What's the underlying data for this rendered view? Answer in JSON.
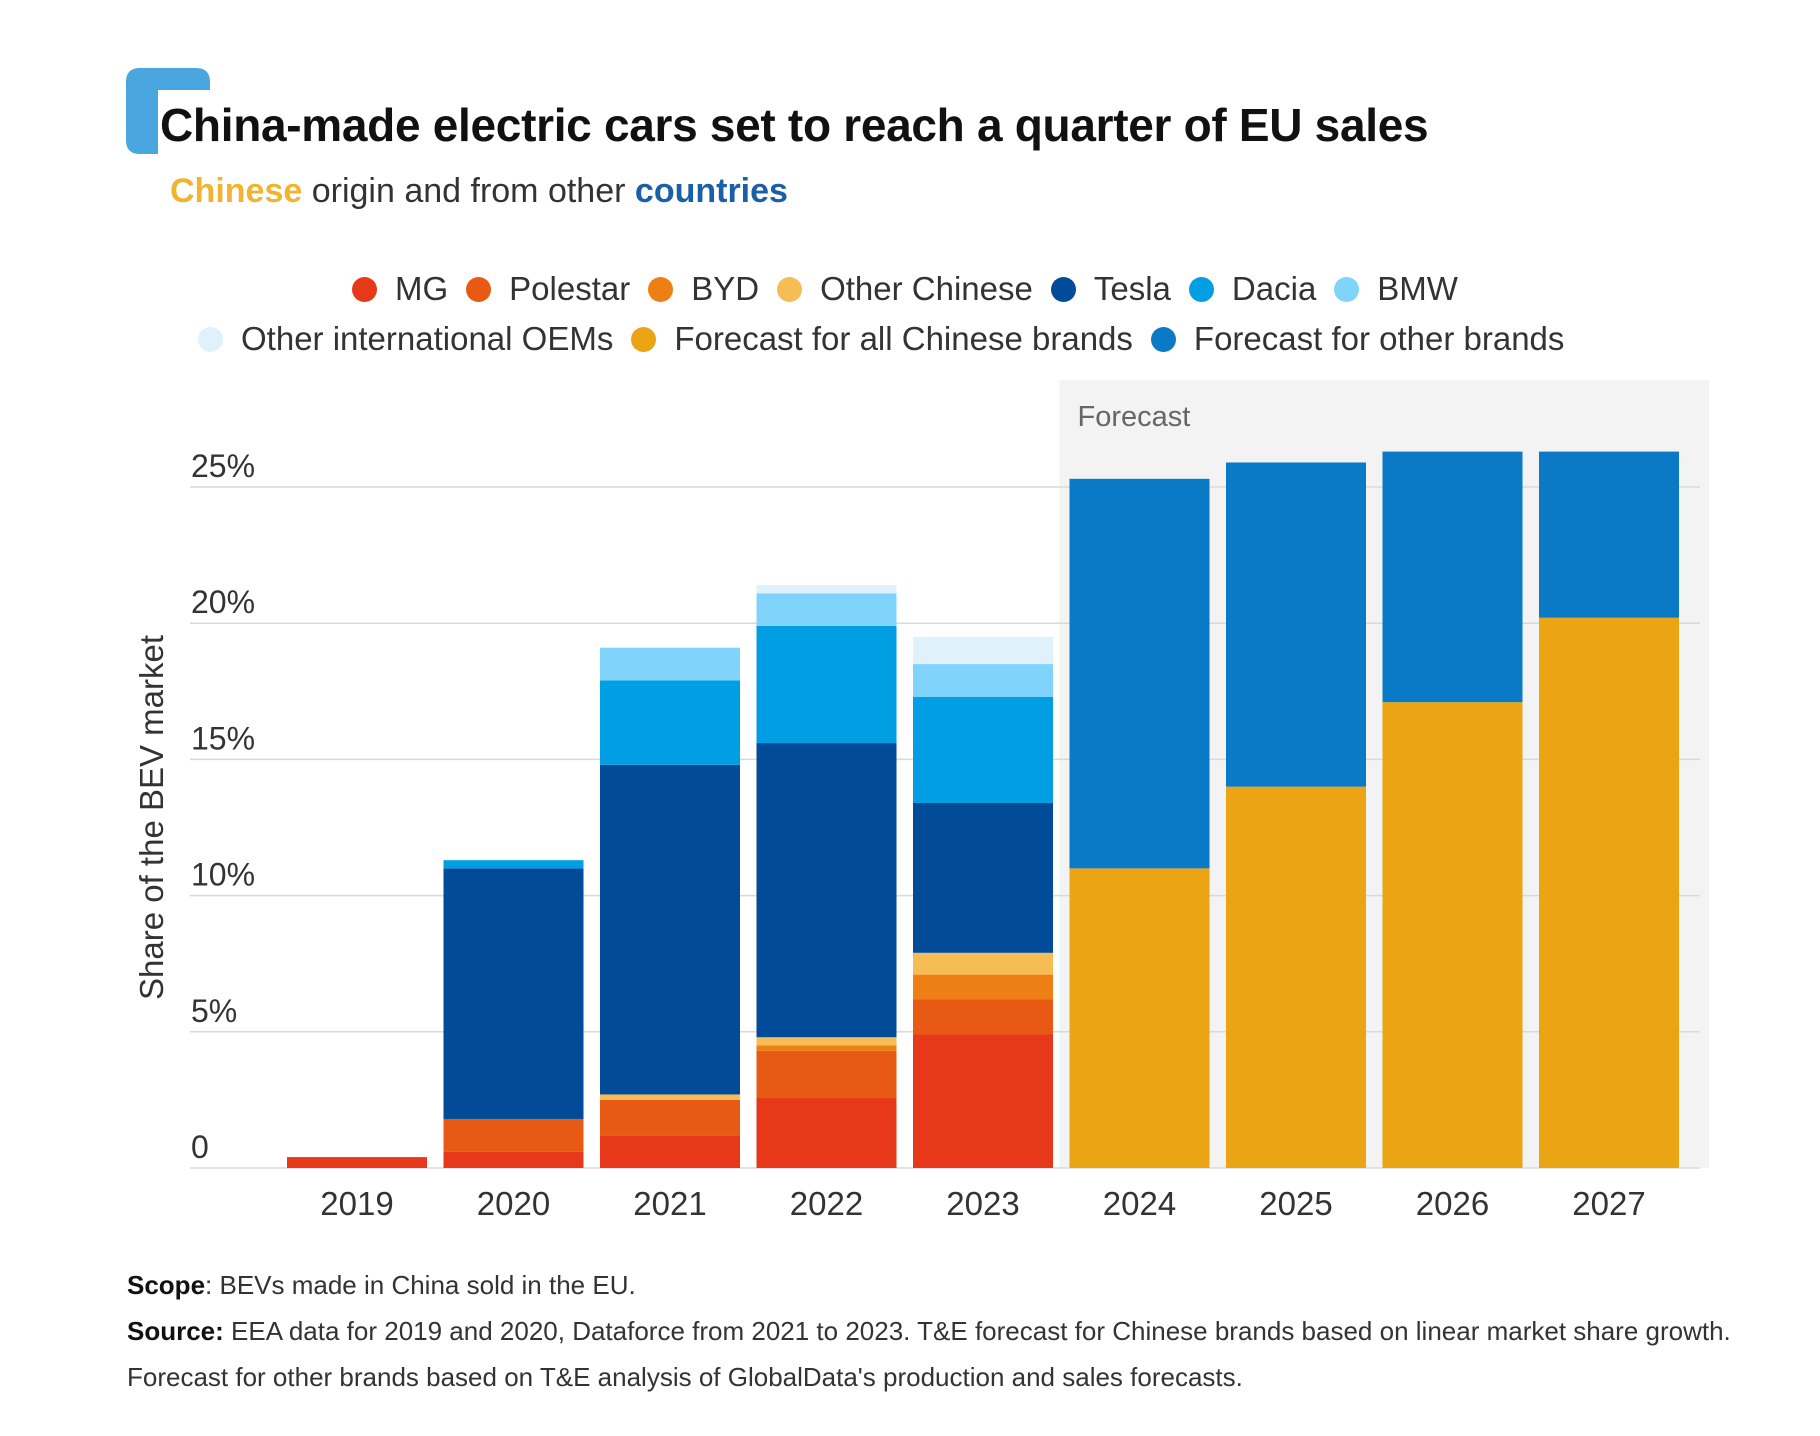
{
  "title": "China-made electric cars set to reach a quarter of EU sales",
  "subtitle": {
    "chinese": "Chinese",
    "middle": "origin and from other",
    "countries": "countries"
  },
  "legend_rows": [
    [
      {
        "name": "MG",
        "color": "#e8381a"
      },
      {
        "name": "Polestar",
        "color": "#e85a14"
      },
      {
        "name": "BYD",
        "color": "#ee7f14"
      },
      {
        "name": "Other Chinese",
        "color": "#f7bd55"
      },
      {
        "name": "Tesla",
        "color": "#024b98"
      },
      {
        "name": "Dacia",
        "color": "#009ee3"
      },
      {
        "name": "BMW",
        "color": "#80d4fb"
      }
    ],
    [
      {
        "name": "Other international OEMs",
        "color": "#dff2fb"
      },
      {
        "name": "Forecast for all Chinese brands",
        "color": "#eba414"
      },
      {
        "name": "Forecast for other brands",
        "color": "#0a7ac6"
      }
    ]
  ],
  "chart_data": {
    "type": "bar",
    "stacked": true,
    "categories": [
      "2019",
      "2020",
      "2021",
      "2022",
      "2023",
      "2024",
      "2025",
      "2026",
      "2027"
    ],
    "ylabel": "Share of the BEV market",
    "ylim": [
      0,
      25
    ],
    "yticks": [
      0,
      5,
      10,
      15,
      20,
      25
    ],
    "yticklabels": [
      "0",
      "5%",
      "10%",
      "15%",
      "20%",
      "25%"
    ],
    "grid": true,
    "legend_position": "top",
    "forecast_region": {
      "label": "Forecast",
      "from": "2024",
      "to": "2027"
    },
    "series": [
      {
        "name": "MG",
        "color": "#e8381a",
        "values": [
          0.4,
          0.6,
          1.2,
          2.6,
          4.9,
          0,
          0,
          0,
          0
        ]
      },
      {
        "name": "Polestar",
        "color": "#e85a14",
        "values": [
          0,
          1.2,
          1.3,
          1.7,
          1.3,
          0,
          0,
          0,
          0
        ]
      },
      {
        "name": "BYD",
        "color": "#ee7f14",
        "values": [
          0,
          0,
          0,
          0.2,
          0.9,
          0,
          0,
          0,
          0
        ]
      },
      {
        "name": "Other Chinese",
        "color": "#f7bd55",
        "values": [
          0,
          0,
          0.2,
          0.3,
          0.8,
          0,
          0,
          0,
          0
        ]
      },
      {
        "name": "Tesla",
        "color": "#024b98",
        "values": [
          0,
          9.2,
          12.1,
          10.8,
          5.5,
          0,
          0,
          0,
          0
        ]
      },
      {
        "name": "Dacia",
        "color": "#009ee3",
        "values": [
          0,
          0.3,
          3.1,
          4.3,
          3.9,
          0,
          0,
          0,
          0
        ]
      },
      {
        "name": "BMW",
        "color": "#80d4fb",
        "values": [
          0,
          0,
          1.2,
          1.2,
          1.2,
          0,
          0,
          0,
          0
        ]
      },
      {
        "name": "Other international OEMs",
        "color": "#dff2fb",
        "values": [
          0,
          0,
          0,
          0.3,
          1.0,
          0,
          0,
          0,
          0
        ]
      },
      {
        "name": "Forecast for all Chinese brands",
        "color": "#eba414",
        "values": [
          0,
          0,
          0,
          0,
          0,
          11.0,
          14.0,
          17.1,
          20.2
        ]
      },
      {
        "name": "Forecast for other brands",
        "color": "#0a7ac6",
        "values": [
          0,
          0,
          0,
          0,
          0,
          14.3,
          11.9,
          9.2,
          6.1
        ]
      }
    ]
  },
  "notes": {
    "scope_label": "Scope",
    "scope_text": ": BEVs made in China sold in the EU.",
    "source_label": "Source:",
    "source_text": " EEA data for 2019 and 2020, Dataforce from 2021 to 2023. T&E forecast for Chinese brands based on linear market share growth. Forecast for other brands based on T&E analysis of GlobalData's production and sales forecasts."
  }
}
